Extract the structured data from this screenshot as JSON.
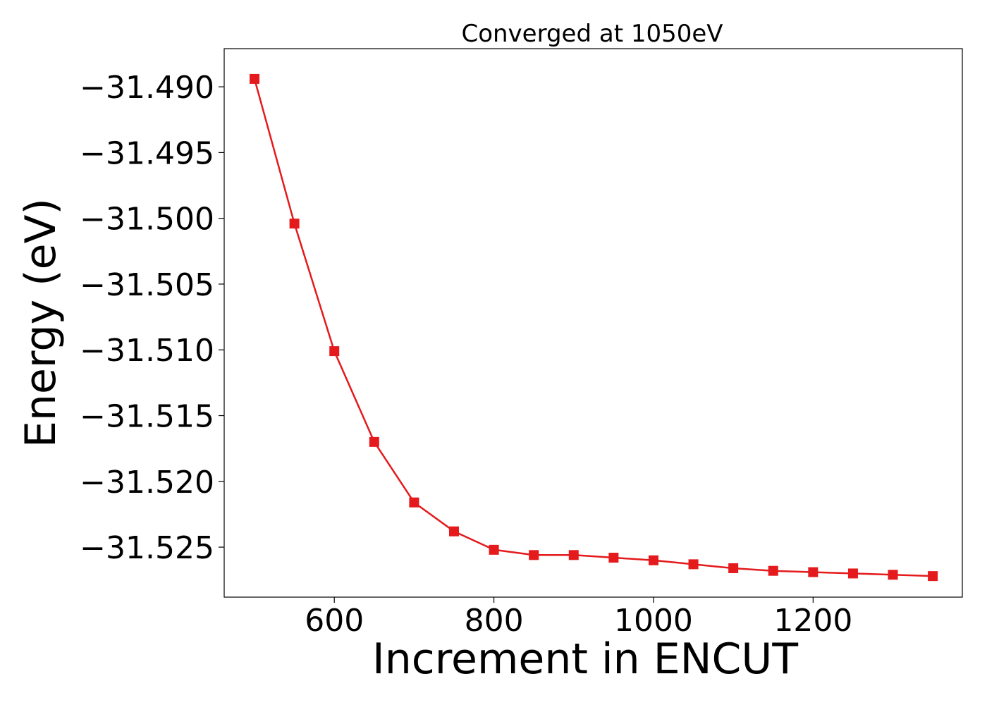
{
  "chart_data": {
    "type": "line",
    "title": "Converged at 1050eV",
    "xlabel": "Increment in ENCUT",
    "ylabel": "Energy (eV)",
    "xlim": [
      462,
      1387
    ],
    "ylim": [
      -31.5288,
      -31.4871
    ],
    "xticks": [
      600,
      800,
      1000,
      1200
    ],
    "xtick_labels": [
      "600",
      "800",
      "1000",
      "1200"
    ],
    "yticks": [
      -31.49,
      -31.495,
      -31.5,
      -31.505,
      -31.51,
      -31.515,
      -31.52,
      -31.525
    ],
    "ytick_labels": [
      "−31.490",
      "−31.495",
      "−31.500",
      "−31.505",
      "−31.510",
      "−31.515",
      "−31.520",
      "−31.525"
    ],
    "grid": false,
    "series": [
      {
        "color": "#e41a1c",
        "marker": "square",
        "x": [
          500,
          550,
          600,
          650,
          700,
          750,
          800,
          850,
          900,
          950,
          1000,
          1050,
          1100,
          1150,
          1200,
          1250,
          1300,
          1350
        ],
        "y": [
          -31.4894,
          -31.5004,
          -31.5101,
          -31.517,
          -31.5216,
          -31.5238,
          -31.5252,
          -31.5256,
          -31.5256,
          -31.5258,
          -31.526,
          -31.5263,
          -31.5266,
          -31.5268,
          -31.5269,
          -31.527,
          -31.5271,
          -31.5272
        ]
      }
    ]
  }
}
